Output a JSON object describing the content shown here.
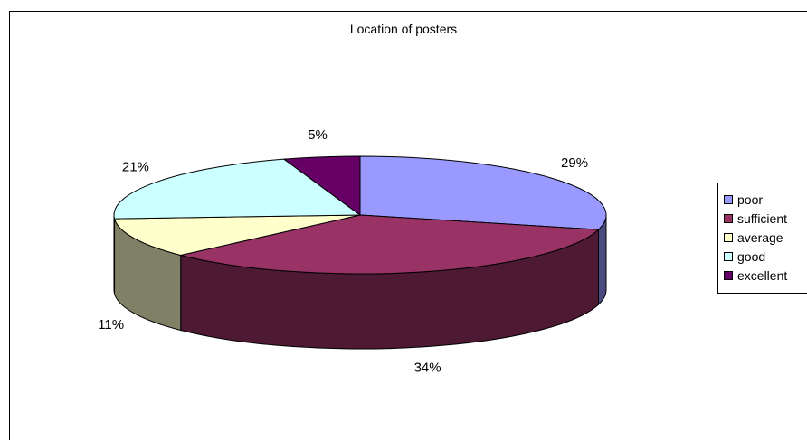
{
  "chart_data": {
    "type": "pie",
    "title": "Location of posters",
    "slices": [
      {
        "name": "poor",
        "value": 29,
        "label": "29%",
        "color": "#9999ff",
        "side_color": "#4b4b80"
      },
      {
        "name": "sufficient",
        "value": 34,
        "label": "34%",
        "color": "#993366",
        "side_color": "#4d1933"
      },
      {
        "name": "average",
        "value": 11,
        "label": "11%",
        "color": "#ffffcc",
        "side_color": "#808066"
      },
      {
        "name": "good",
        "value": 21,
        "label": "21%",
        "color": "#ccffff",
        "side_color": "#668080"
      },
      {
        "name": "excellent",
        "value": 5,
        "label": "5%",
        "color": "#660066",
        "side_color": "#330033"
      }
    ],
    "legend_position": "right",
    "style": "3d-exploded-none"
  }
}
